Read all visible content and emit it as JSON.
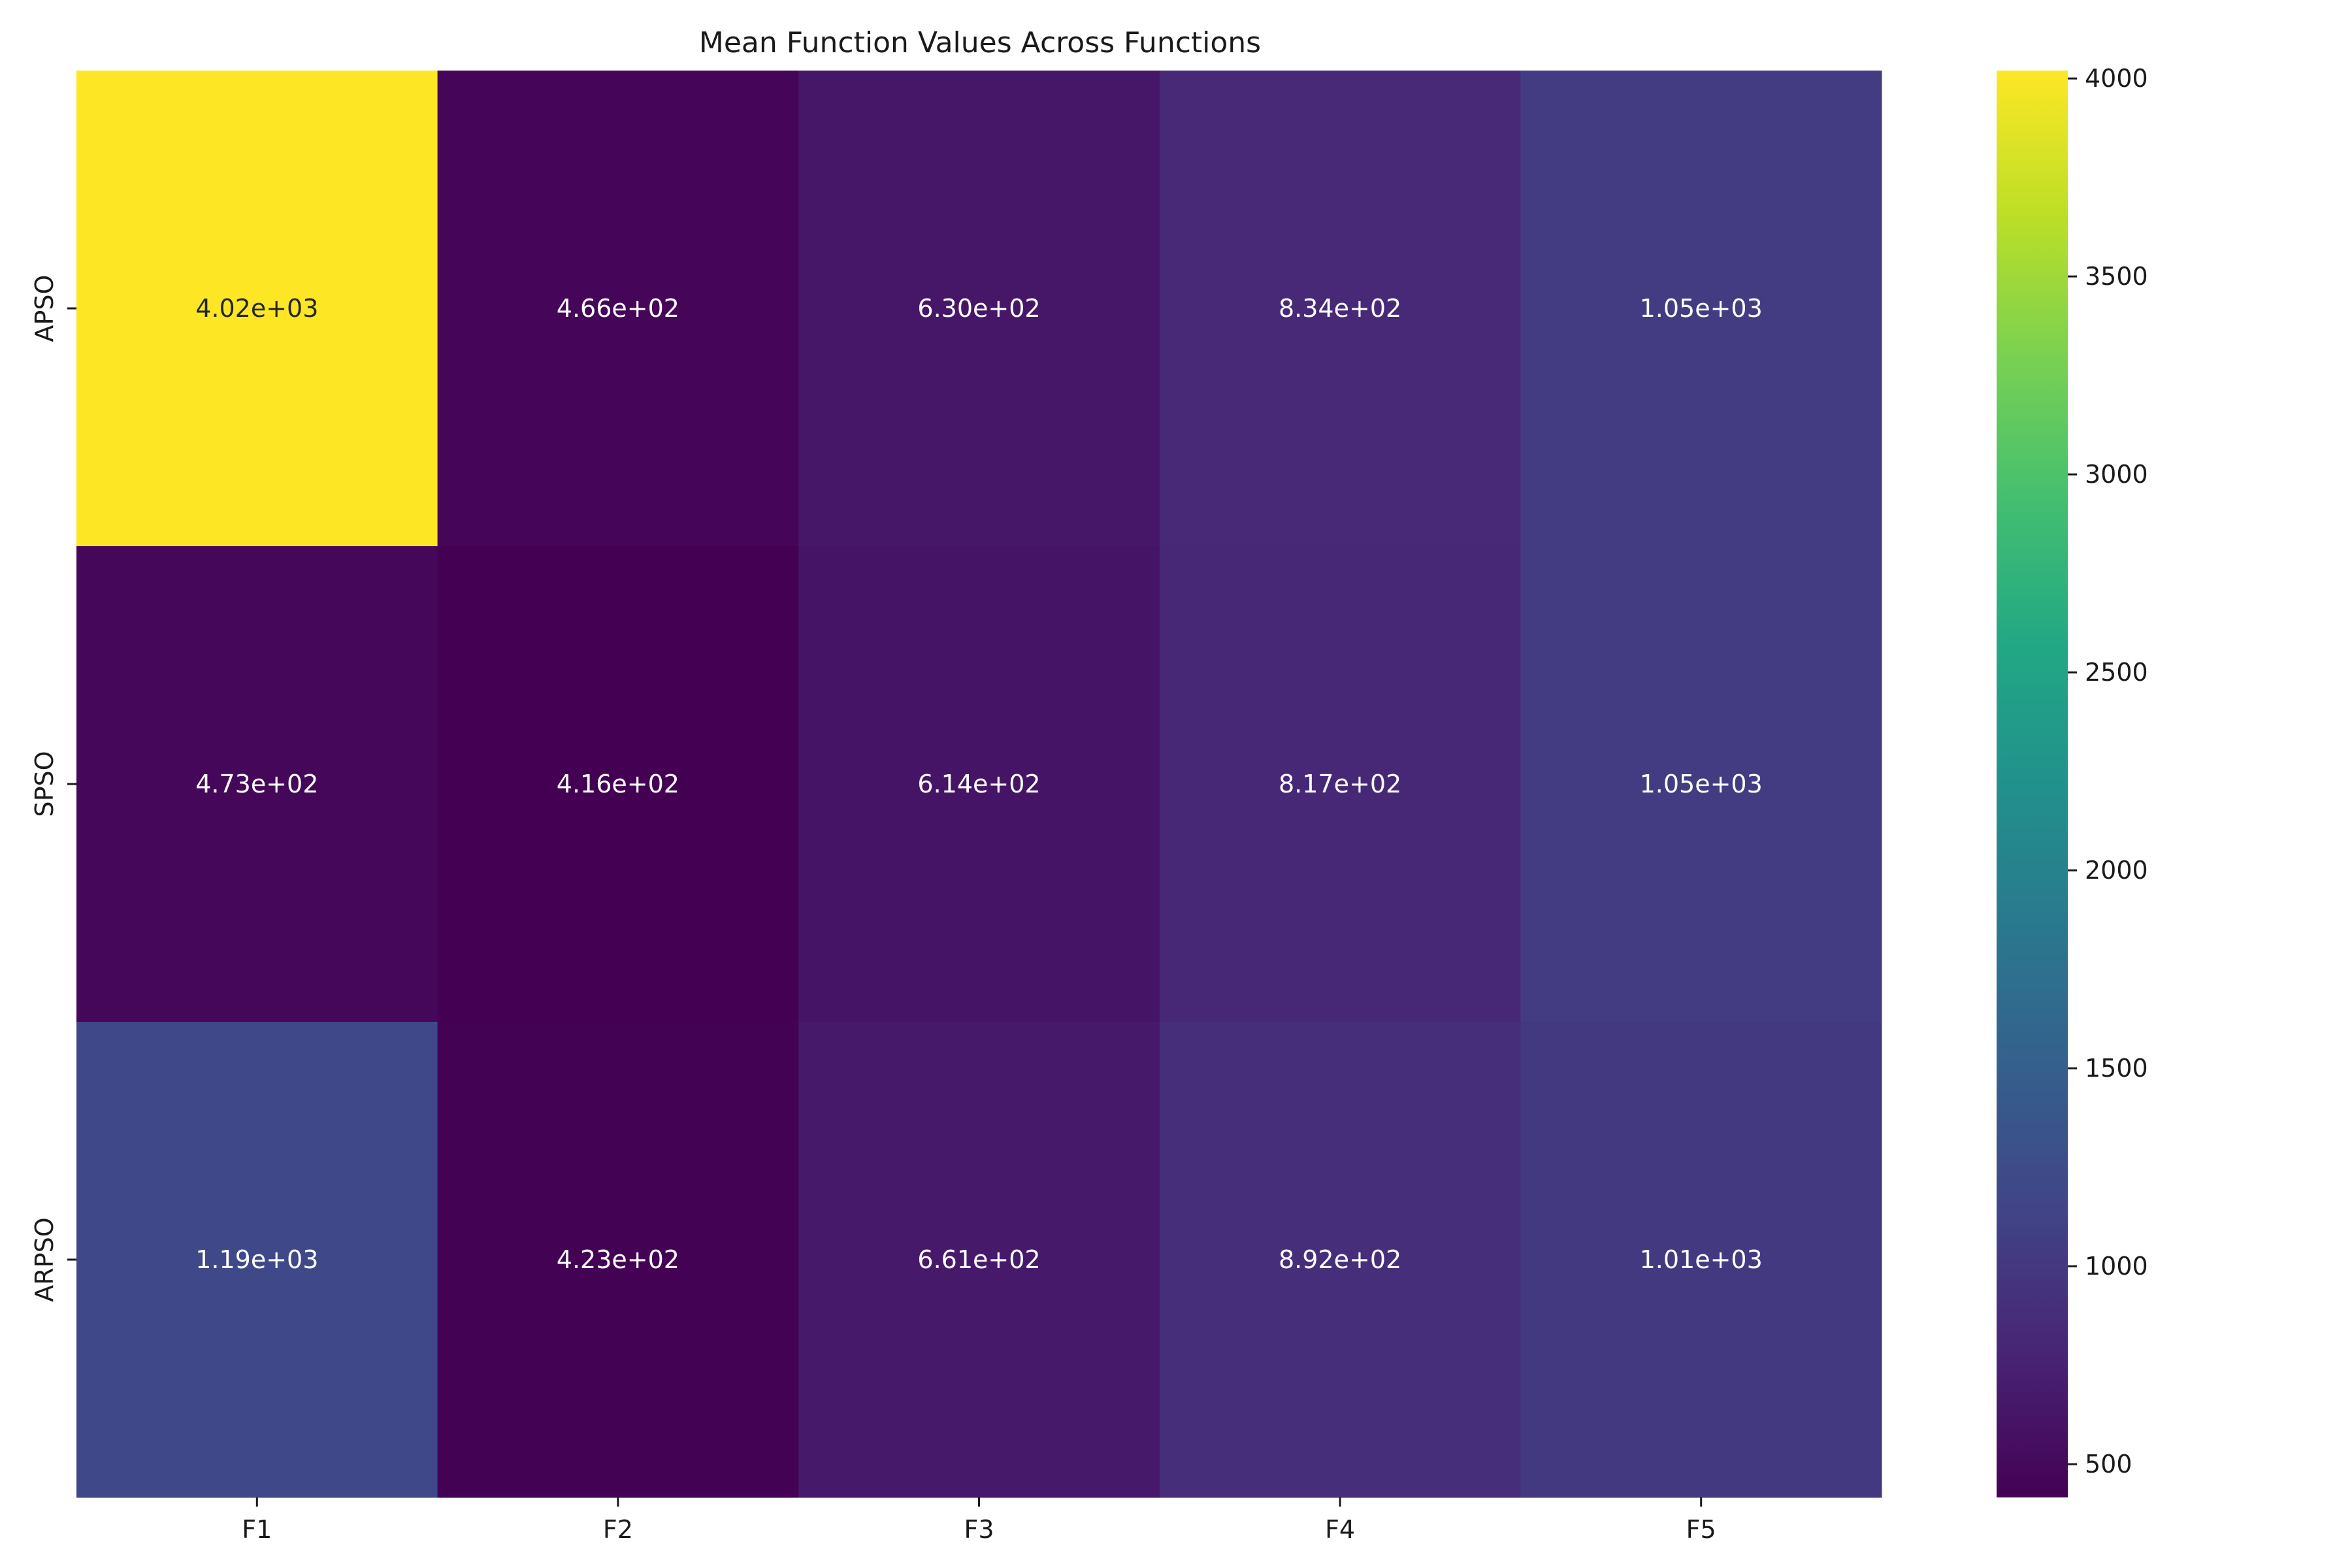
{
  "chart_data": {
    "type": "heatmap",
    "title": "Mean Function Values Across Functions",
    "xlabel": "",
    "ylabel": "",
    "x_categories": [
      "F1",
      "F2",
      "F3",
      "F4",
      "F5"
    ],
    "y_categories": [
      "APSO",
      "SPSO",
      "ARPSO"
    ],
    "values": [
      [
        4020,
        466,
        630,
        834,
        1050
      ],
      [
        473,
        416,
        614,
        817,
        1050
      ],
      [
        1190,
        423,
        661,
        892,
        1010
      ]
    ],
    "cell_labels": [
      [
        "4.02e+03",
        "4.66e+02",
        "6.30e+02",
        "8.34e+02",
        "1.05e+03"
      ],
      [
        "4.73e+02",
        "4.16e+02",
        "6.14e+02",
        "8.17e+02",
        "1.05e+03"
      ],
      [
        "1.19e+03",
        "4.23e+02",
        "6.61e+02",
        "8.92e+02",
        "1.01e+03"
      ]
    ],
    "colormap": "viridis",
    "color_range": [
      416,
      4020
    ],
    "colorbar_ticks": [
      "500",
      "1000",
      "1500",
      "2000",
      "2500",
      "3000",
      "3500",
      "4000"
    ],
    "colorbar_tick_values": [
      500,
      1000,
      1500,
      2000,
      2500,
      3000,
      3500,
      4000
    ],
    "dark_text_color": "#262626",
    "light_text_color": "#ffffff"
  }
}
